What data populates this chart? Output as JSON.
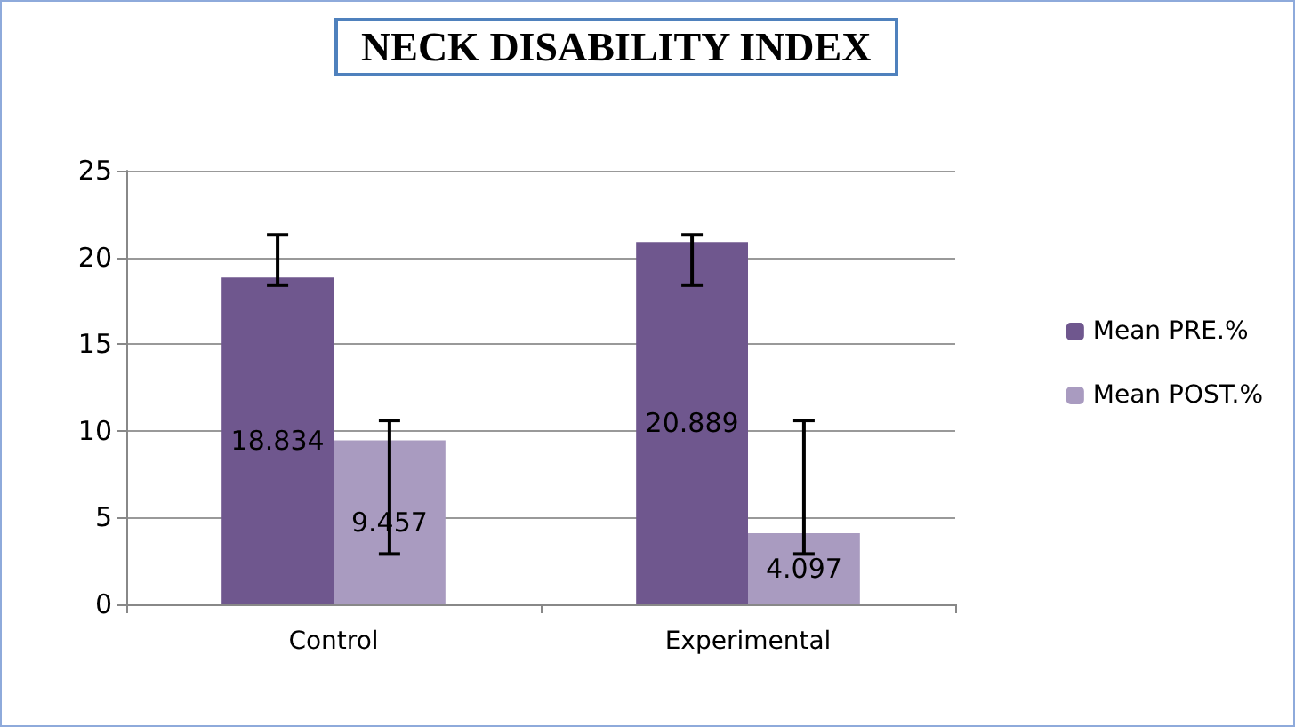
{
  "chart_data": {
    "type": "bar",
    "title": "NECK DISABILITY INDEX",
    "categories": [
      "Control",
      "Experimental"
    ],
    "series": [
      {
        "name": "Mean PRE.%",
        "color": "#6f578e",
        "values": [
          18.834,
          20.889
        ],
        "errors": [
          [
            18.4,
            21.3
          ],
          [
            18.4,
            21.3
          ]
        ]
      },
      {
        "name": "Mean POST.%",
        "color": "#a99bc0",
        "values": [
          9.457,
          4.097
        ],
        "errors": [
          [
            2.9,
            10.6
          ],
          [
            2.9,
            10.6
          ]
        ]
      }
    ],
    "ylim": [
      0,
      25
    ],
    "yticks": [
      0,
      5,
      10,
      15,
      20,
      25
    ],
    "grid": "y",
    "legend": "right",
    "data_labels": true
  }
}
